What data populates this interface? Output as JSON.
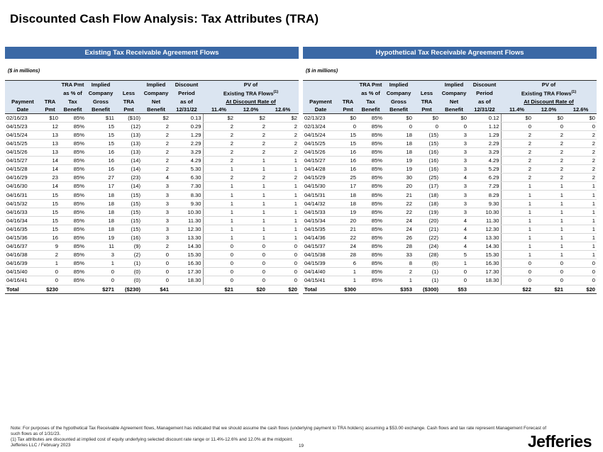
{
  "title": "Discounted Cash Flow Analysis: Tax Attributes (TRA)",
  "in_millions": "($ in millions)",
  "headers": {
    "row1": [
      "",
      "",
      "TRA Pmt",
      "Implied",
      "",
      "Implied",
      "Discount",
      "PV of"
    ],
    "row2": [
      "",
      "",
      "as % of",
      "Company",
      "Less",
      "Company",
      "Period",
      "Existing TRA Flows"
    ],
    "row3": [
      "Payment",
      "TRA",
      "Tax",
      "Gross",
      "TRA",
      "Net",
      "as of",
      "At Discount Rate of"
    ],
    "row4": [
      "Date",
      "Pmt",
      "Benefit",
      "Benefit",
      "Pmt",
      "Benefit",
      "12/31/22",
      "11.4%",
      "12.0%",
      "12.6%"
    ],
    "footnote_marker": "(1)"
  },
  "left": {
    "banner": "Existing Tax Receivable Agreement Flows",
    "rows": [
      [
        "02/16/23",
        "$10",
        "85%",
        "$11",
        "($10)",
        "$2",
        "0.13",
        "$2",
        "$2",
        "$2"
      ],
      [
        "04/15/23",
        "12",
        "85%",
        "15",
        "(12)",
        "2",
        "0.29",
        "2",
        "2",
        "2"
      ],
      [
        "04/15/24",
        "13",
        "85%",
        "15",
        "(13)",
        "2",
        "1.29",
        "2",
        "2",
        "2"
      ],
      [
        "04/15/25",
        "13",
        "85%",
        "15",
        "(13)",
        "2",
        "2.29",
        "2",
        "2",
        "2"
      ],
      [
        "04/15/26",
        "13",
        "85%",
        "16",
        "(13)",
        "2",
        "3.29",
        "2",
        "2",
        "2"
      ],
      [
        "04/15/27",
        "14",
        "85%",
        "16",
        "(14)",
        "2",
        "4.29",
        "2",
        "1",
        "1"
      ],
      [
        "04/15/28",
        "14",
        "85%",
        "16",
        "(14)",
        "2",
        "5.30",
        "1",
        "1",
        "1"
      ],
      [
        "04/16/29",
        "23",
        "85%",
        "27",
        "(23)",
        "4",
        "6.30",
        "2",
        "2",
        "2"
      ],
      [
        "04/16/30",
        "14",
        "85%",
        "17",
        "(14)",
        "3",
        "7.30",
        "1",
        "1",
        "1"
      ],
      [
        "04/16/31",
        "15",
        "85%",
        "18",
        "(15)",
        "3",
        "8.30",
        "1",
        "1",
        "1"
      ],
      [
        "04/15/32",
        "15",
        "85%",
        "18",
        "(15)",
        "3",
        "9.30",
        "1",
        "1",
        "1"
      ],
      [
        "04/16/33",
        "15",
        "85%",
        "18",
        "(15)",
        "3",
        "10.30",
        "1",
        "1",
        "1"
      ],
      [
        "04/16/34",
        "15",
        "85%",
        "18",
        "(15)",
        "3",
        "11.30",
        "1",
        "1",
        "1"
      ],
      [
        "04/16/35",
        "15",
        "85%",
        "18",
        "(15)",
        "3",
        "12.30",
        "1",
        "1",
        "1"
      ],
      [
        "04/15/36",
        "16",
        "85%",
        "19",
        "(16)",
        "3",
        "13.30",
        "1",
        "1",
        "1"
      ],
      [
        "04/16/37",
        "9",
        "85%",
        "11",
        "(9)",
        "2",
        "14.30",
        "0",
        "0",
        "0"
      ],
      [
        "04/16/38",
        "2",
        "85%",
        "3",
        "(2)",
        "0",
        "15.30",
        "0",
        "0",
        "0"
      ],
      [
        "04/16/39",
        "1",
        "85%",
        "1",
        "(1)",
        "0",
        "16.30",
        "0",
        "0",
        "0"
      ],
      [
        "04/15/40",
        "0",
        "85%",
        "0",
        "(0)",
        "0",
        "17.30",
        "0",
        "0",
        "0"
      ],
      [
        "04/16/41",
        "0",
        "85%",
        "0",
        "(0)",
        "0",
        "18.30",
        "0",
        "0",
        "0"
      ]
    ],
    "total": [
      "Total",
      "$230",
      "",
      "$271",
      "($230)",
      "$41",
      "",
      "$21",
      "$20",
      "$20"
    ]
  },
  "right": {
    "banner": "Hypothetical Tax Receivable Agreement Flows",
    "rows": [
      [
        "02/13/23",
        "$0",
        "85%",
        "$0",
        "$0",
        "$0",
        "0.12",
        "$0",
        "$0",
        "$0"
      ],
      [
        "02/13/24",
        "0",
        "85%",
        "0",
        "0",
        "0",
        "1.12",
        "0",
        "0",
        "0"
      ],
      [
        "04/15/24",
        "15",
        "85%",
        "18",
        "(15)",
        "3",
        "1.29",
        "2",
        "2",
        "2"
      ],
      [
        "04/15/25",
        "15",
        "85%",
        "18",
        "(15)",
        "3",
        "2.29",
        "2",
        "2",
        "2"
      ],
      [
        "04/15/26",
        "16",
        "85%",
        "18",
        "(16)",
        "3",
        "3.29",
        "2",
        "2",
        "2"
      ],
      [
        "04/15/27",
        "16",
        "85%",
        "19",
        "(16)",
        "3",
        "4.29",
        "2",
        "2",
        "2"
      ],
      [
        "04/14/28",
        "16",
        "85%",
        "19",
        "(16)",
        "3",
        "5.29",
        "2",
        "2",
        "2"
      ],
      [
        "04/15/29",
        "25",
        "85%",
        "30",
        "(25)",
        "4",
        "6.29",
        "2",
        "2",
        "2"
      ],
      [
        "04/15/30",
        "17",
        "85%",
        "20",
        "(17)",
        "3",
        "7.29",
        "1",
        "1",
        "1"
      ],
      [
        "04/15/31",
        "18",
        "85%",
        "21",
        "(18)",
        "3",
        "8.29",
        "1",
        "1",
        "1"
      ],
      [
        "04/14/32",
        "18",
        "85%",
        "22",
        "(18)",
        "3",
        "9.30",
        "1",
        "1",
        "1"
      ],
      [
        "04/15/33",
        "19",
        "85%",
        "22",
        "(19)",
        "3",
        "10.30",
        "1",
        "1",
        "1"
      ],
      [
        "04/15/34",
        "20",
        "85%",
        "24",
        "(20)",
        "4",
        "11.30",
        "1",
        "1",
        "1"
      ],
      [
        "04/15/35",
        "21",
        "85%",
        "24",
        "(21)",
        "4",
        "12.30",
        "1",
        "1",
        "1"
      ],
      [
        "04/14/36",
        "22",
        "85%",
        "26",
        "(22)",
        "4",
        "13.30",
        "1",
        "1",
        "1"
      ],
      [
        "04/15/37",
        "24",
        "85%",
        "28",
        "(24)",
        "4",
        "14.30",
        "1",
        "1",
        "1"
      ],
      [
        "04/15/38",
        "28",
        "85%",
        "33",
        "(28)",
        "5",
        "15.30",
        "1",
        "1",
        "1"
      ],
      [
        "04/15/39",
        "6",
        "85%",
        "8",
        "(6)",
        "1",
        "16.30",
        "0",
        "0",
        "0"
      ],
      [
        "04/14/40",
        "1",
        "85%",
        "2",
        "(1)",
        "0",
        "17.30",
        "0",
        "0",
        "0"
      ],
      [
        "04/15/41",
        "1",
        "85%",
        "1",
        "(1)",
        "0",
        "18.30",
        "0",
        "0",
        "0"
      ]
    ],
    "total": [
      "Total",
      "$300",
      "",
      "$353",
      "($300)",
      "$53",
      "",
      "$22",
      "$21",
      "$20"
    ]
  },
  "footer": {
    "note": "Note: For purposes of the hypothetical Tax Receivable Agreement flows, Management has indicated that we should assume the cash flows (underlying payment to TRA holders) assuming a $53.00 exchange. Cash flows and tax rate represent Management Forecast of such flows as of 1/31/23.",
    "fn1": "(1)    Tax attributes are discounted at implied cost of equity underlying selected discount rate range or 11.4%-12.6% and 12.0% at the midpoint.",
    "company": "Jefferies LLC / February 2023",
    "page": "19",
    "logo": "Jefferies"
  }
}
